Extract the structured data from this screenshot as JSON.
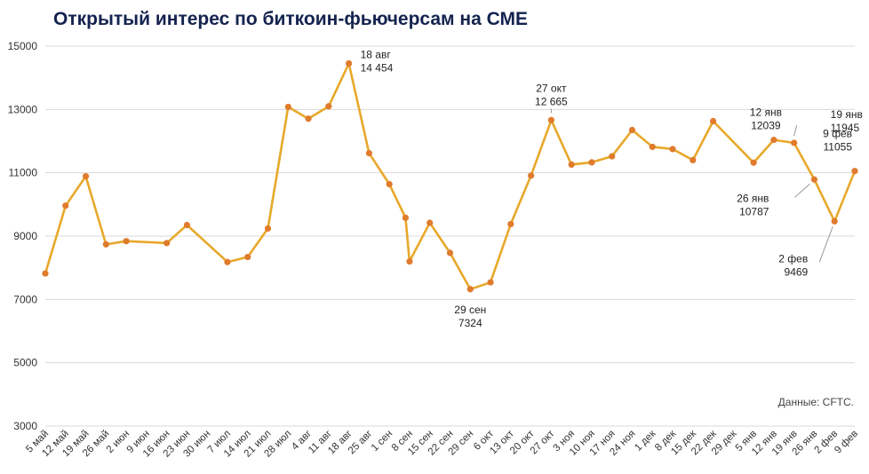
{
  "title": "Открытый интерес по биткоин-фьючерсам на СМЕ",
  "source": "Данные: CFTC.",
  "colors": {
    "line": "#E8A82B",
    "marker": "#E07B2D",
    "grid": "#D9D9D9",
    "title": "#14234F"
  },
  "chart_data": {
    "type": "line",
    "title": "Открытый интерес по биткоин-фьючерсам на СМЕ",
    "xlabel": "",
    "ylabel": "",
    "ylim": [
      3000,
      15000
    ],
    "yticks": [
      3000,
      5000,
      7000,
      9000,
      11000,
      13000,
      15000
    ],
    "grid": true,
    "x_tick_labels": [
      "5 май",
      "12 май",
      "19 май",
      "26 май",
      "2 июн",
      "9 июн",
      "16 июн",
      "23 июн",
      "30 июн",
      "7 июл",
      "14 июл",
      "21 июл",
      "28 июл",
      "4 авг",
      "11 авг",
      "18 авг",
      "25 авг",
      "1 сен",
      "8 сен",
      "15 сен",
      "22 сен",
      "29 сен",
      "6 окт",
      "13 окт",
      "20 окт",
      "27 окт",
      "3 ноя",
      "10 ноя",
      "17 ноя",
      "24 ноя",
      "1 дек",
      "8 дек",
      "15 дек",
      "22 дек",
      "29 дек",
      "5 янв",
      "12 янв",
      "19 янв",
      "26 янв",
      "2 фев",
      "9 фев"
    ],
    "points": [
      {
        "x": 0,
        "y": 7820
      },
      {
        "x": 1,
        "y": 9960
      },
      {
        "x": 2,
        "y": 10890
      },
      {
        "x": 3,
        "y": 8740
      },
      {
        "x": 4,
        "y": 8840
      },
      {
        "x": 6,
        "y": 8780
      },
      {
        "x": 7,
        "y": 9350
      },
      {
        "x": 9,
        "y": 8180
      },
      {
        "x": 10,
        "y": 8340
      },
      {
        "x": 11,
        "y": 9240
      },
      {
        "x": 12,
        "y": 13080
      },
      {
        "x": 13,
        "y": 12710
      },
      {
        "x": 14,
        "y": 13100
      },
      {
        "x": 15,
        "y": 14454
      },
      {
        "x": 16,
        "y": 11620
      },
      {
        "x": 17,
        "y": 10640
      },
      {
        "x": 17.8,
        "y": 9580
      },
      {
        "x": 18,
        "y": 8200
      },
      {
        "x": 19,
        "y": 9420
      },
      {
        "x": 20,
        "y": 8470
      },
      {
        "x": 21,
        "y": 7324
      },
      {
        "x": 22,
        "y": 7540
      },
      {
        "x": 23,
        "y": 9380
      },
      {
        "x": 24,
        "y": 10910
      },
      {
        "x": 25,
        "y": 12665
      },
      {
        "x": 26,
        "y": 11260
      },
      {
        "x": 27,
        "y": 11330
      },
      {
        "x": 28,
        "y": 11520
      },
      {
        "x": 29,
        "y": 12350
      },
      {
        "x": 30,
        "y": 11820
      },
      {
        "x": 31,
        "y": 11750
      },
      {
        "x": 32,
        "y": 11400
      },
      {
        "x": 33,
        "y": 12630
      },
      {
        "x": 35,
        "y": 11320
      },
      {
        "x": 36,
        "y": 12039
      },
      {
        "x": 37,
        "y": 11945
      },
      {
        "x": 38,
        "y": 10787
      },
      {
        "x": 39,
        "y": 9469
      },
      {
        "x": 40,
        "y": 11055
      }
    ],
    "annotations": [
      {
        "point": 13,
        "lines": [
          "18 авг",
          "14 454"
        ],
        "anchor": "start",
        "leader": false
      },
      {
        "point": 20,
        "lines": [
          "29 сен",
          "7324"
        ],
        "anchor": "middle",
        "leader": false
      },
      {
        "point": 24,
        "lines": [
          "27 окт",
          "12 665"
        ],
        "anchor": "middle",
        "leader": true
      },
      {
        "point": 34,
        "lines": [
          "12 янв",
          "12039"
        ],
        "anchor": "middle",
        "leader": false
      },
      {
        "point": 35,
        "lines": [
          "19 янв",
          "11945"
        ],
        "anchor": "start",
        "leader": true
      },
      {
        "point": 36,
        "lines": [
          "26 янв",
          "10787"
        ],
        "anchor": "end",
        "leader": true
      },
      {
        "point": 37,
        "lines": [
          "2 фев",
          "9469"
        ],
        "anchor": "end",
        "leader": true
      },
      {
        "point": 38,
        "lines": [
          "9 фев",
          "11055"
        ],
        "anchor": "end",
        "leader": false
      }
    ]
  }
}
